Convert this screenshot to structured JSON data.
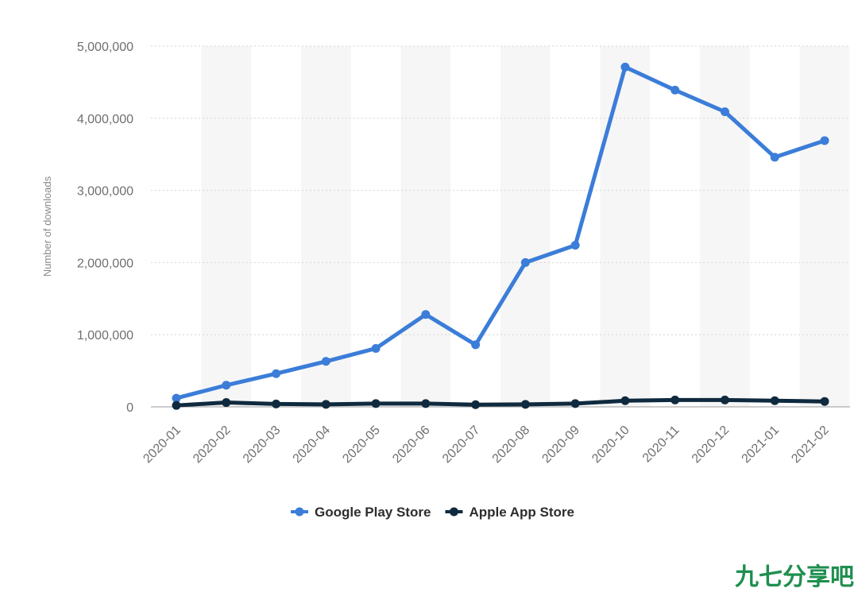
{
  "chart_data": {
    "type": "line",
    "title": "",
    "xlabel": "",
    "ylabel": "Number of downloads",
    "categories": [
      "2020-01",
      "2020-02",
      "2020-03",
      "2020-04",
      "2020-05",
      "2020-06",
      "2020-07",
      "2020-08",
      "2020-09",
      "2020-10",
      "2020-11",
      "2020-12",
      "2021-01",
      "2021-02"
    ],
    "ylim": [
      0,
      5000000
    ],
    "yticks": [
      0,
      1000000,
      2000000,
      3000000,
      4000000,
      5000000
    ],
    "ytick_labels": [
      "0",
      "1,000,000",
      "2,000,000",
      "3,000,000",
      "4,000,000",
      "5,000,000"
    ],
    "grid": true,
    "legend_position": "bottom-center",
    "series": [
      {
        "name": "Google Play Store",
        "color": "#3b7dd8",
        "values": [
          120000,
          300000,
          460000,
          630000,
          810000,
          1280000,
          860000,
          2000000,
          2240000,
          4710000,
          4390000,
          4090000,
          3460000,
          3690000
        ]
      },
      {
        "name": "Apple App Store",
        "color": "#0f2a3f",
        "values": [
          20000,
          60000,
          40000,
          35000,
          45000,
          45000,
          30000,
          35000,
          45000,
          85000,
          95000,
          95000,
          85000,
          75000
        ]
      }
    ]
  },
  "watermark": {
    "text": "九七分享吧",
    "color": "#1e8f4e"
  }
}
